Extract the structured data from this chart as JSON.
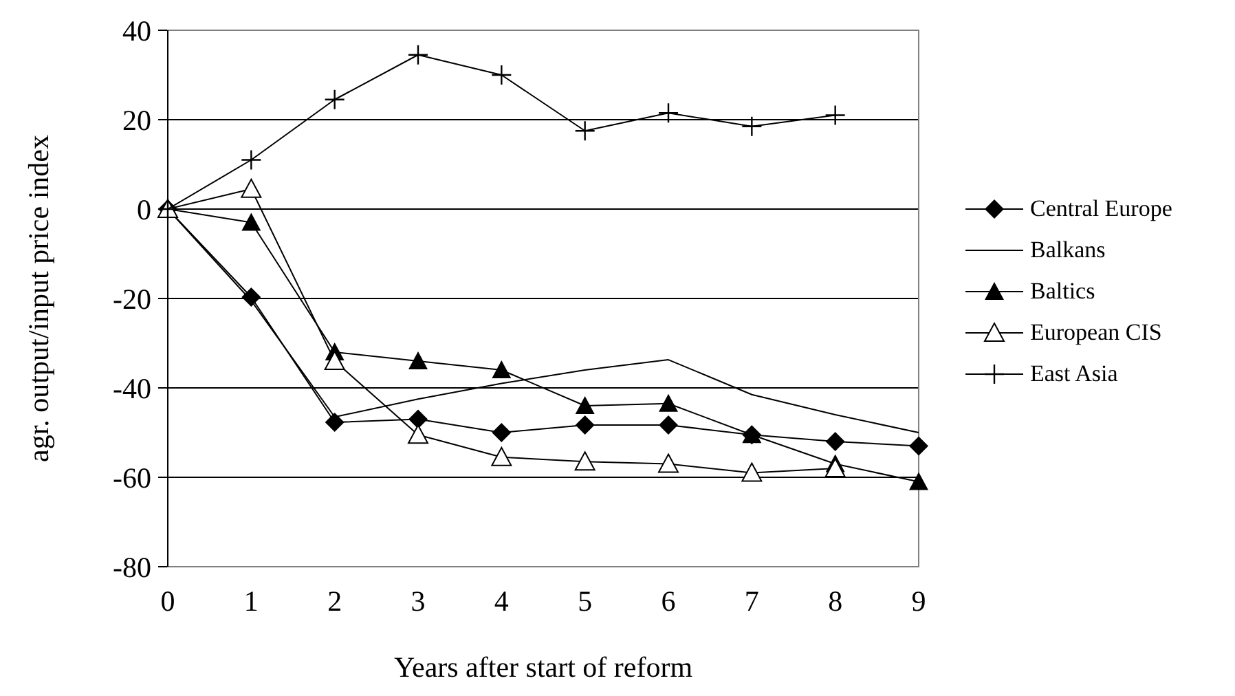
{
  "chart_data": {
    "type": "line",
    "xlabel": "Years after start of reform",
    "ylabel": "agr. output/input price index",
    "x": [
      0,
      1,
      2,
      3,
      4,
      5,
      6,
      7,
      8,
      9
    ],
    "xlim": [
      0,
      9
    ],
    "xticks": [
      0,
      1,
      2,
      3,
      4,
      5,
      6,
      7,
      8,
      9
    ],
    "ylim": [
      -80,
      40
    ],
    "yticks": [
      -80,
      -60,
      -40,
      -20,
      0,
      20,
      40
    ],
    "grid": "y",
    "legend": "right",
    "series": [
      {
        "name": "Central Europe",
        "color": "#000000",
        "marker": "diamond",
        "values": [
          0,
          -19.7,
          -47.7,
          -47,
          -50,
          -48.3,
          -48.3,
          -50.5,
          -52,
          -53
        ]
      },
      {
        "name": "Balkans",
        "color": "#000000",
        "marker": "none",
        "values": [
          0,
          -20.5,
          -46.5,
          -42.5,
          -39,
          -36,
          -33.7,
          -41.5,
          -46,
          -50
        ]
      },
      {
        "name": "Baltics",
        "color": "#000000",
        "marker": "triangle",
        "values": [
          0,
          -3,
          -32,
          -34,
          -36,
          -44,
          -43.5,
          -50.5,
          -57,
          -61
        ]
      },
      {
        "name": "European CIS",
        "color": "#000000",
        "marker": "triangle-open",
        "values": [
          0,
          4.5,
          -34,
          -50.5,
          -55.5,
          -56.5,
          -57,
          -59,
          -58,
          null
        ]
      },
      {
        "name": "East Asia",
        "color": "#000000",
        "marker": "cross",
        "values": [
          0,
          11,
          24.5,
          34.5,
          30,
          17.5,
          21.5,
          18.5,
          21,
          null
        ]
      }
    ]
  }
}
